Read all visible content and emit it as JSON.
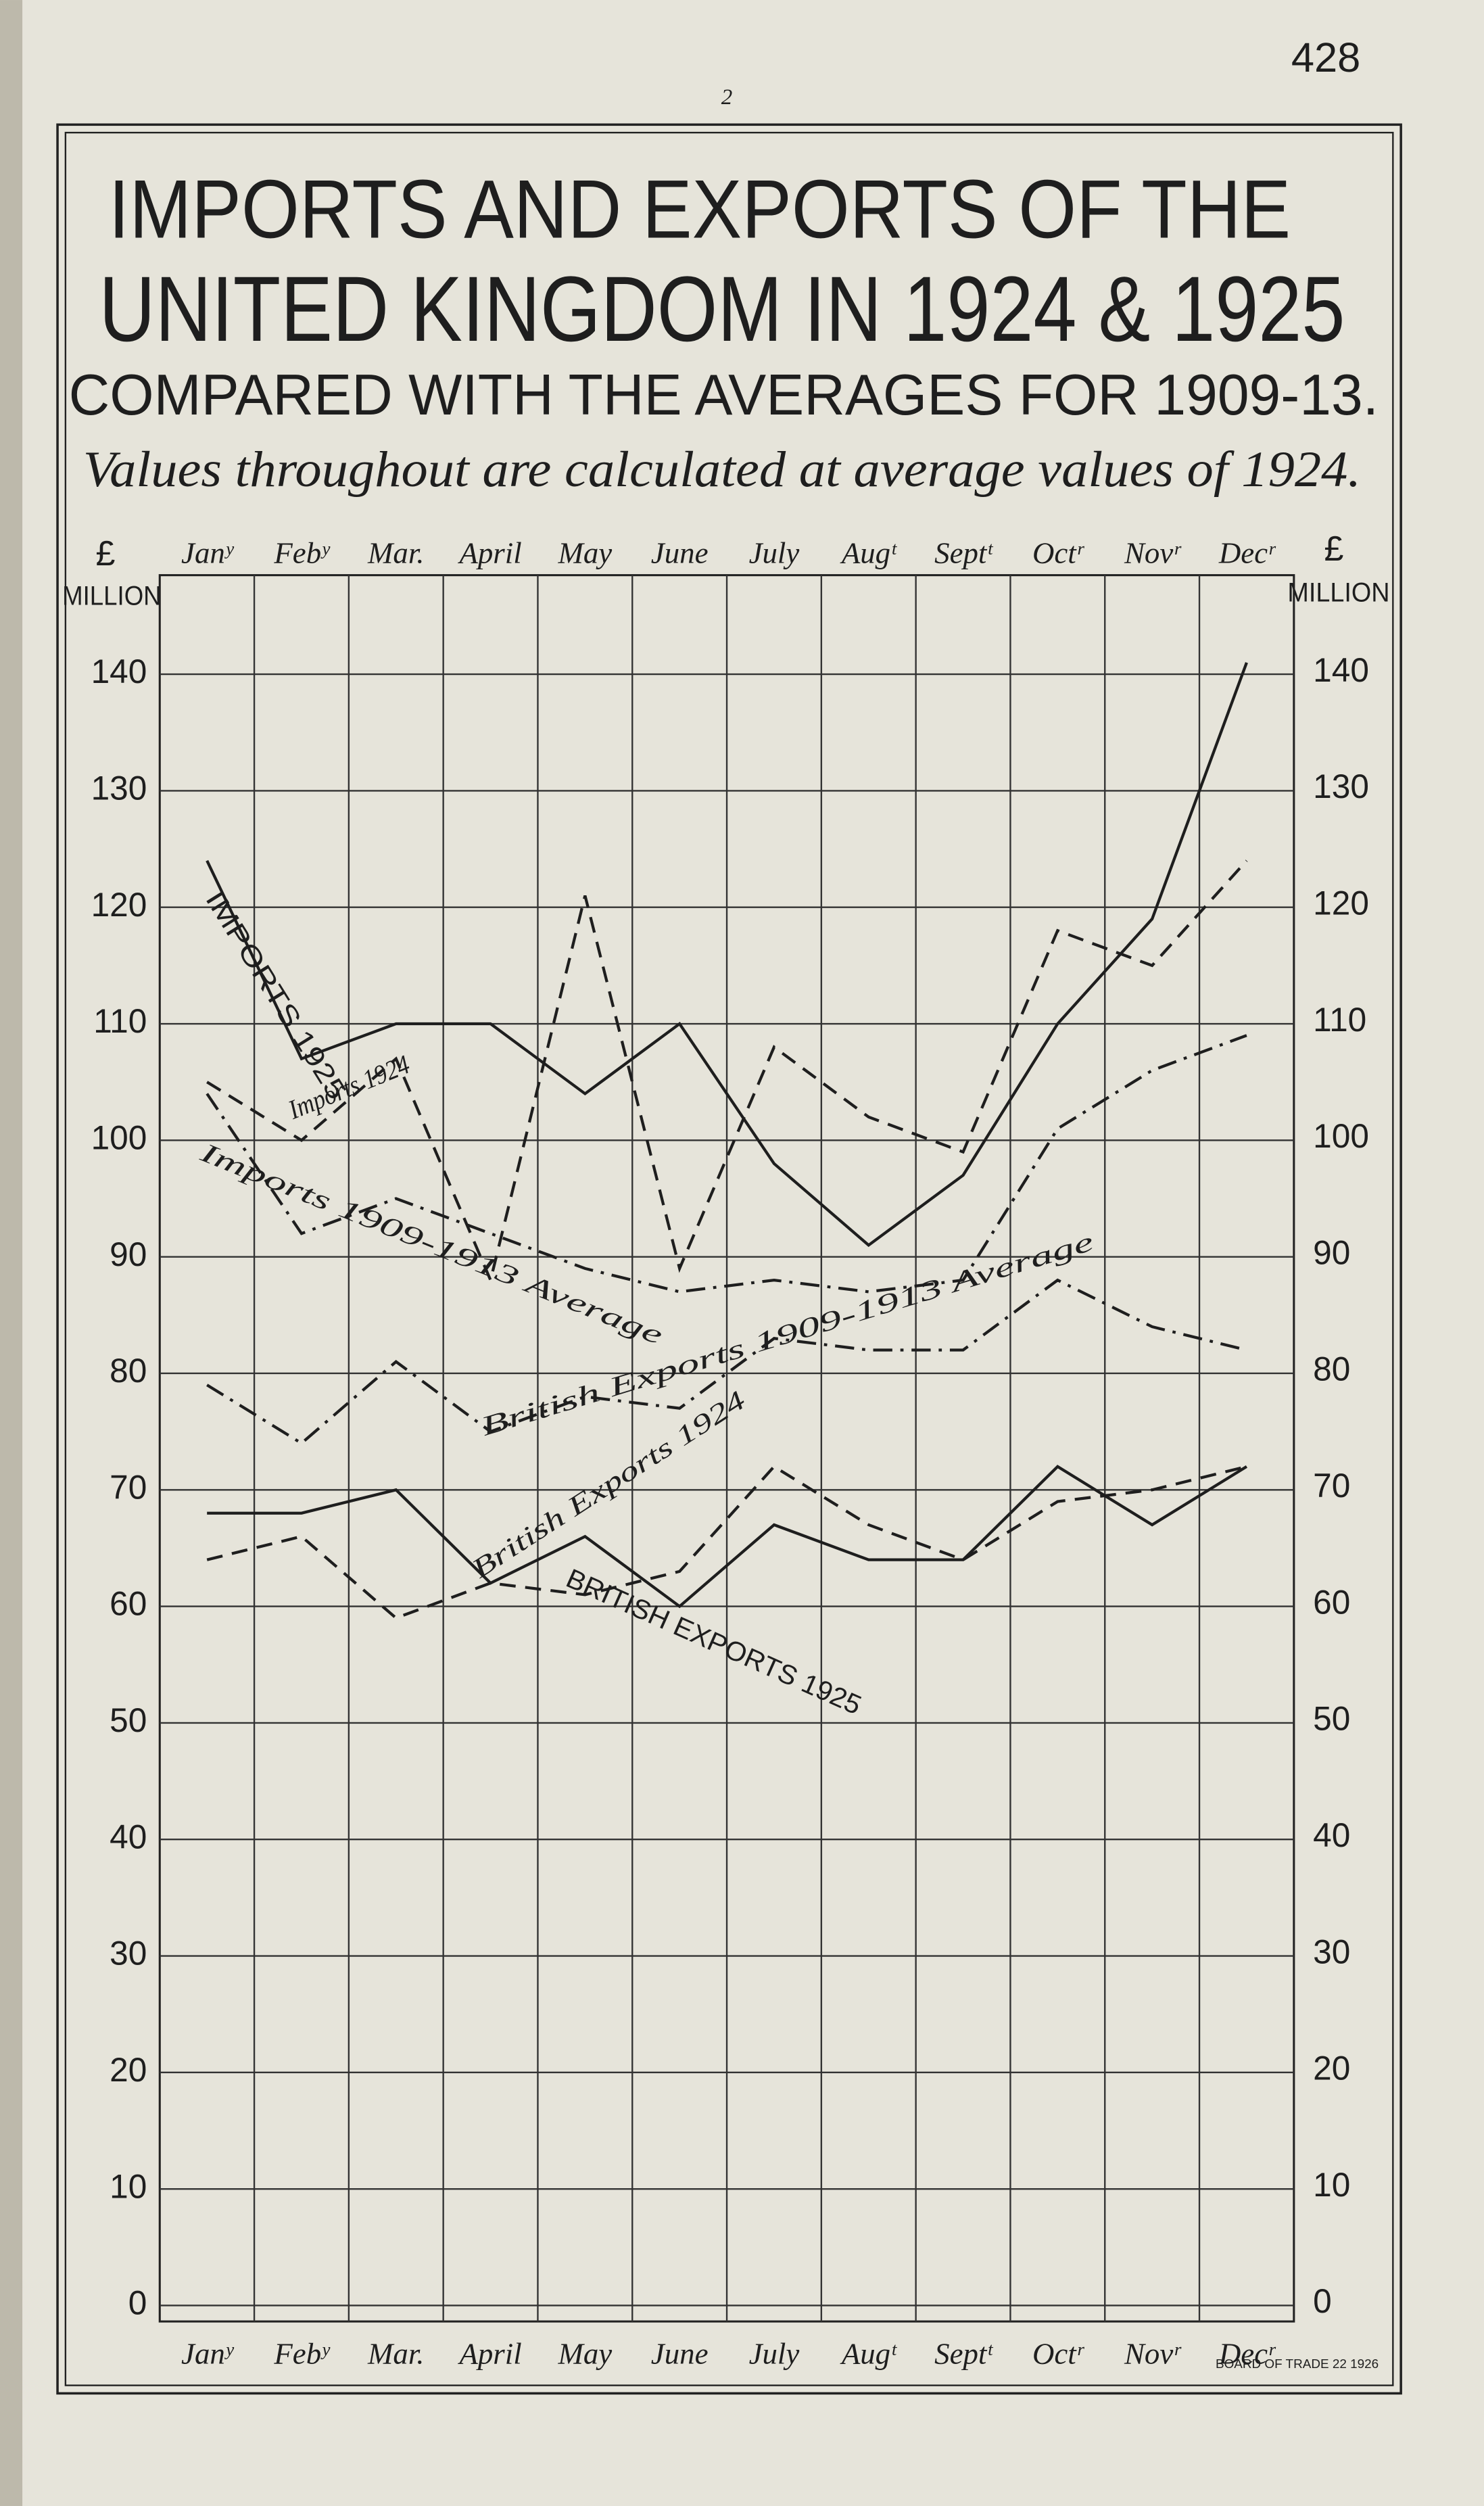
{
  "page_number": "2",
  "folio": "428",
  "footer": "BOARD OF TRADE 22 1926",
  "chart_data": {
    "type": "line",
    "title": [
      "IMPORTS AND EXPORTS OF THE",
      "UNITED KINGDOM IN 1924 & 1925",
      "COMPARED WITH THE AVERAGES FOR 1909-13."
    ],
    "subtitle": "Values throughout are calculated at average values of 1924.",
    "ylabel": {
      "symbol": "£",
      "unit": "MILLION"
    },
    "categories": [
      "Janʸ",
      "Febʸ",
      "Mar.",
      "April",
      "May",
      "June",
      "July",
      "Augᵗ",
      "Septᵗ",
      "Octʳ",
      "Novʳ",
      "Decʳ"
    ],
    "ylim": [
      0,
      140
    ],
    "yticks": [
      0,
      10,
      20,
      30,
      40,
      50,
      60,
      70,
      80,
      90,
      100,
      110,
      120,
      130,
      140
    ],
    "grid": true,
    "series": [
      {
        "name": "IMPORTS 1925",
        "color": "#1e1e1e",
        "dash": "solid",
        "values": [
          124,
          107,
          110,
          110,
          104,
          110,
          98,
          91,
          97,
          110,
          119,
          141
        ]
      },
      {
        "name": "Imports 1924",
        "color": "#1e1e1e",
        "dash": "dashed",
        "values": [
          105,
          100,
          107,
          88,
          121,
          89,
          108,
          102,
          99,
          118,
          115,
          124
        ]
      },
      {
        "name": "Imports 1909-1913 Average",
        "color": "#1e1e1e",
        "dash": "dashdot",
        "values": [
          104,
          92,
          95,
          92,
          89,
          87,
          88,
          87,
          88,
          101,
          106,
          109
        ]
      },
      {
        "name": "British Exports 1909-1913 Average",
        "color": "#1e1e1e",
        "dash": "dashdot",
        "values": [
          79,
          74,
          81,
          75,
          78,
          77,
          83,
          82,
          82,
          88,
          84,
          82
        ]
      },
      {
        "name": "British Exports 1924",
        "color": "#1e1e1e",
        "dash": "dashed",
        "values": [
          64,
          66,
          59,
          62,
          61,
          63,
          72,
          67,
          64,
          69,
          70,
          72
        ]
      },
      {
        "name": "BRITISH EXPORTS 1925",
        "color": "#1e1e1e",
        "dash": "solid",
        "values": [
          68,
          68,
          70,
          62,
          66,
          60,
          67,
          64,
          64,
          72,
          67,
          72
        ]
      }
    ]
  }
}
